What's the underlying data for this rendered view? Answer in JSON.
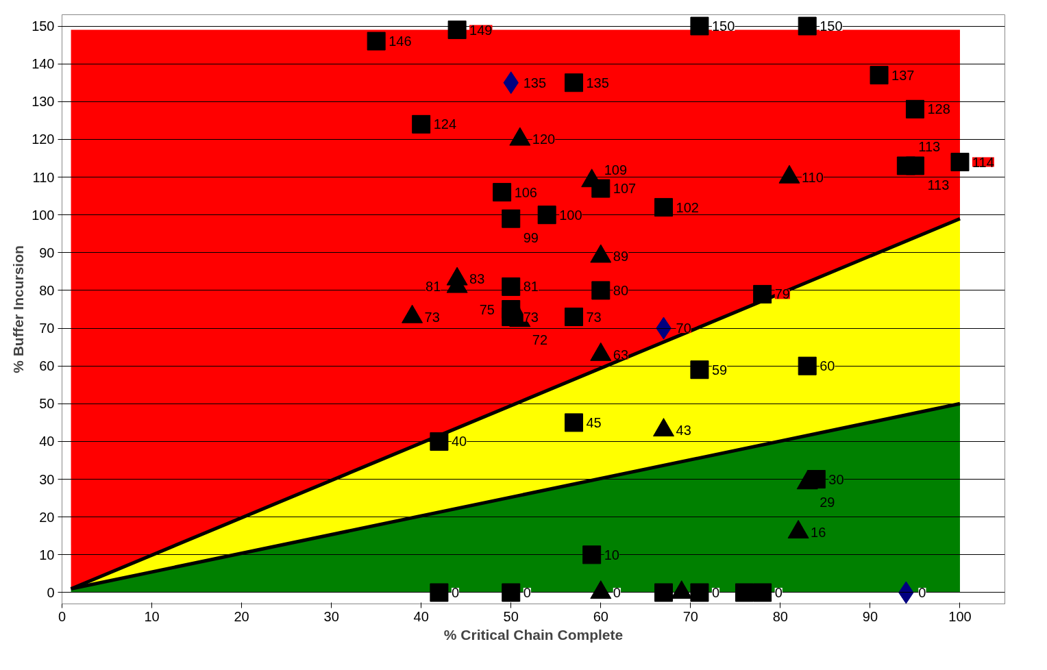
{
  "chart_data": {
    "type": "scatter",
    "xlabel": "% Critical Chain Complete",
    "ylabel": "% Buffer Incursion",
    "xlim": [
      0,
      105
    ],
    "ylim": [
      -3,
      153
    ],
    "xticks": [
      0,
      10,
      20,
      30,
      40,
      50,
      60,
      70,
      80,
      90,
      100
    ],
    "yticks": [
      0,
      10,
      20,
      30,
      40,
      50,
      60,
      70,
      80,
      90,
      100,
      110,
      120,
      130,
      140,
      150
    ],
    "grid": "y",
    "stacked": true,
    "series": [
      {
        "type": "area",
        "color": "#008000",
        "x": [
          1,
          100
        ],
        "values": [
          1,
          50
        ]
      },
      {
        "type": "area",
        "color": "#ffff00",
        "x": [
          1,
          100
        ],
        "values": [
          0,
          49
        ]
      },
      {
        "type": "area",
        "color": "#ff0000",
        "x": [
          1,
          100
        ],
        "values": [
          148,
          50
        ]
      },
      {
        "marker": "square",
        "color": "#000000",
        "x": [
          35,
          44,
          71,
          83,
          57,
          40,
          91,
          95,
          94,
          95,
          100,
          49,
          60,
          50,
          54,
          67,
          50,
          60,
          50,
          50,
          57,
          78,
          71,
          83,
          57,
          42,
          59,
          84,
          42,
          50,
          67,
          71,
          76,
          78
        ],
        "values": [
          146,
          149,
          150,
          150,
          135,
          124,
          137,
          128,
          113,
          113,
          114,
          106,
          107,
          99,
          100,
          102,
          81,
          80,
          75,
          73,
          73,
          79,
          59,
          60,
          45,
          40,
          10,
          30,
          0,
          0,
          0,
          0,
          0,
          0
        ],
        "value_labels": [
          "146",
          "149",
          "150",
          "150",
          "135",
          "124",
          "137",
          "128",
          "113",
          "113",
          "114",
          "106",
          "107",
          "99",
          "100",
          "102",
          "81",
          "80",
          "75",
          "73",
          "73",
          "79",
          "59",
          "60",
          "45",
          "40",
          "10",
          "30",
          "0",
          "0",
          null,
          "0",
          null,
          "0"
        ]
      },
      {
        "marker": "triangle",
        "color": "#000000",
        "x": [
          51,
          59,
          81,
          60,
          44,
          44,
          39,
          51,
          60,
          67,
          83,
          82,
          60,
          69
        ],
        "values": [
          120,
          109,
          110,
          89,
          83,
          81,
          73,
          72,
          63,
          43,
          29,
          16,
          0,
          0
        ],
        "value_labels": [
          "120",
          "109",
          "110",
          "89",
          "83",
          "81",
          "73",
          "72",
          "63",
          "43",
          "29",
          "16",
          "0",
          null
        ]
      },
      {
        "marker": "diamond",
        "color": "#000080",
        "x": [
          50,
          67,
          94
        ],
        "values": [
          135,
          70,
          0
        ],
        "value_labels": [
          "135",
          "70",
          "0"
        ]
      }
    ]
  }
}
